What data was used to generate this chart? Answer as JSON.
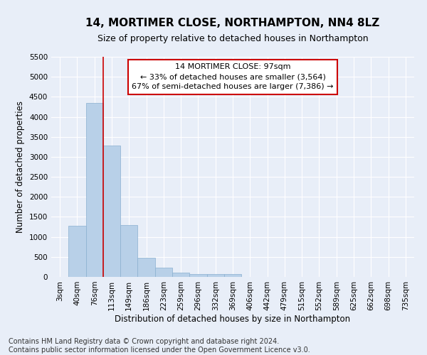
{
  "title": "14, MORTIMER CLOSE, NORTHAMPTON, NN4 8LZ",
  "subtitle": "Size of property relative to detached houses in Northampton",
  "xlabel": "Distribution of detached houses by size in Northampton",
  "ylabel": "Number of detached properties",
  "categories": [
    "3sqm",
    "40sqm",
    "76sqm",
    "113sqm",
    "149sqm",
    "186sqm",
    "223sqm",
    "259sqm",
    "296sqm",
    "332sqm",
    "369sqm",
    "406sqm",
    "442sqm",
    "479sqm",
    "515sqm",
    "552sqm",
    "589sqm",
    "625sqm",
    "662sqm",
    "698sqm",
    "735sqm"
  ],
  "values": [
    0,
    1270,
    4350,
    3280,
    1290,
    480,
    230,
    100,
    70,
    70,
    70,
    0,
    0,
    0,
    0,
    0,
    0,
    0,
    0,
    0,
    0
  ],
  "bar_color": "#b8d0e8",
  "bar_edge_color": "#8ab0d0",
  "property_line_index": 2.5,
  "property_line_color": "#cc0000",
  "ylim": [
    0,
    5500
  ],
  "yticks": [
    0,
    500,
    1000,
    1500,
    2000,
    2500,
    3000,
    3500,
    4000,
    4500,
    5000,
    5500
  ],
  "annotation_text": "14 MORTIMER CLOSE: 97sqm\n← 33% of detached houses are smaller (3,564)\n67% of semi-detached houses are larger (7,386) →",
  "annotation_box_facecolor": "#ffffff",
  "annotation_box_edgecolor": "#cc0000",
  "footer_line1": "Contains HM Land Registry data © Crown copyright and database right 2024.",
  "footer_line2": "Contains public sector information licensed under the Open Government Licence v3.0.",
  "background_color": "#e8eef8",
  "plot_bg_color": "#e8eef8",
  "grid_color": "#ffffff",
  "title_fontsize": 11,
  "subtitle_fontsize": 9,
  "axis_label_fontsize": 8.5,
  "tick_fontsize": 7.5,
  "annotation_fontsize": 8,
  "footer_fontsize": 7
}
